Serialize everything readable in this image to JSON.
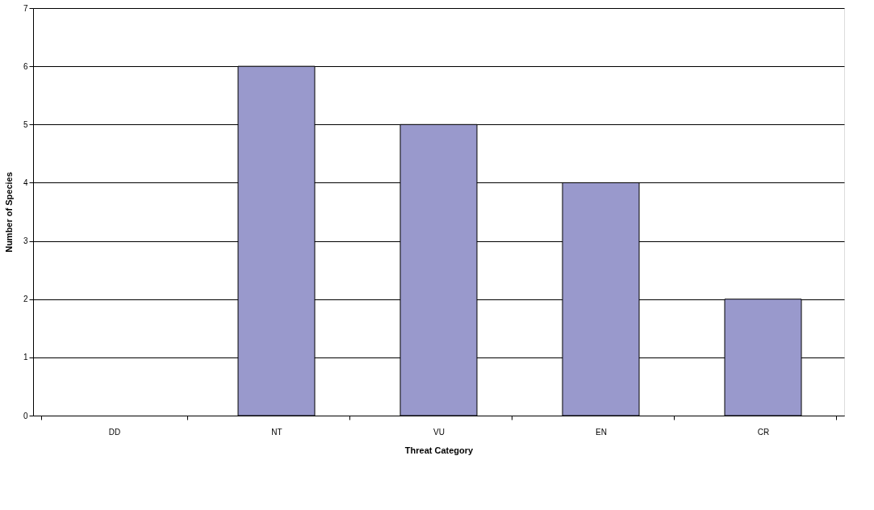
{
  "chart_data": {
    "type": "bar",
    "xlabel": "Threat Category",
    "ylabel": "Number of Species",
    "categories": [
      "DD",
      "NT",
      "VU",
      "EN",
      "CR"
    ],
    "values": [
      0,
      6,
      5,
      4,
      2
    ],
    "color": "#9999cc",
    "ylim": [
      0,
      7
    ],
    "yticks": [
      0,
      1,
      2,
      3,
      4,
      5,
      6,
      7
    ],
    "grid": "y"
  }
}
